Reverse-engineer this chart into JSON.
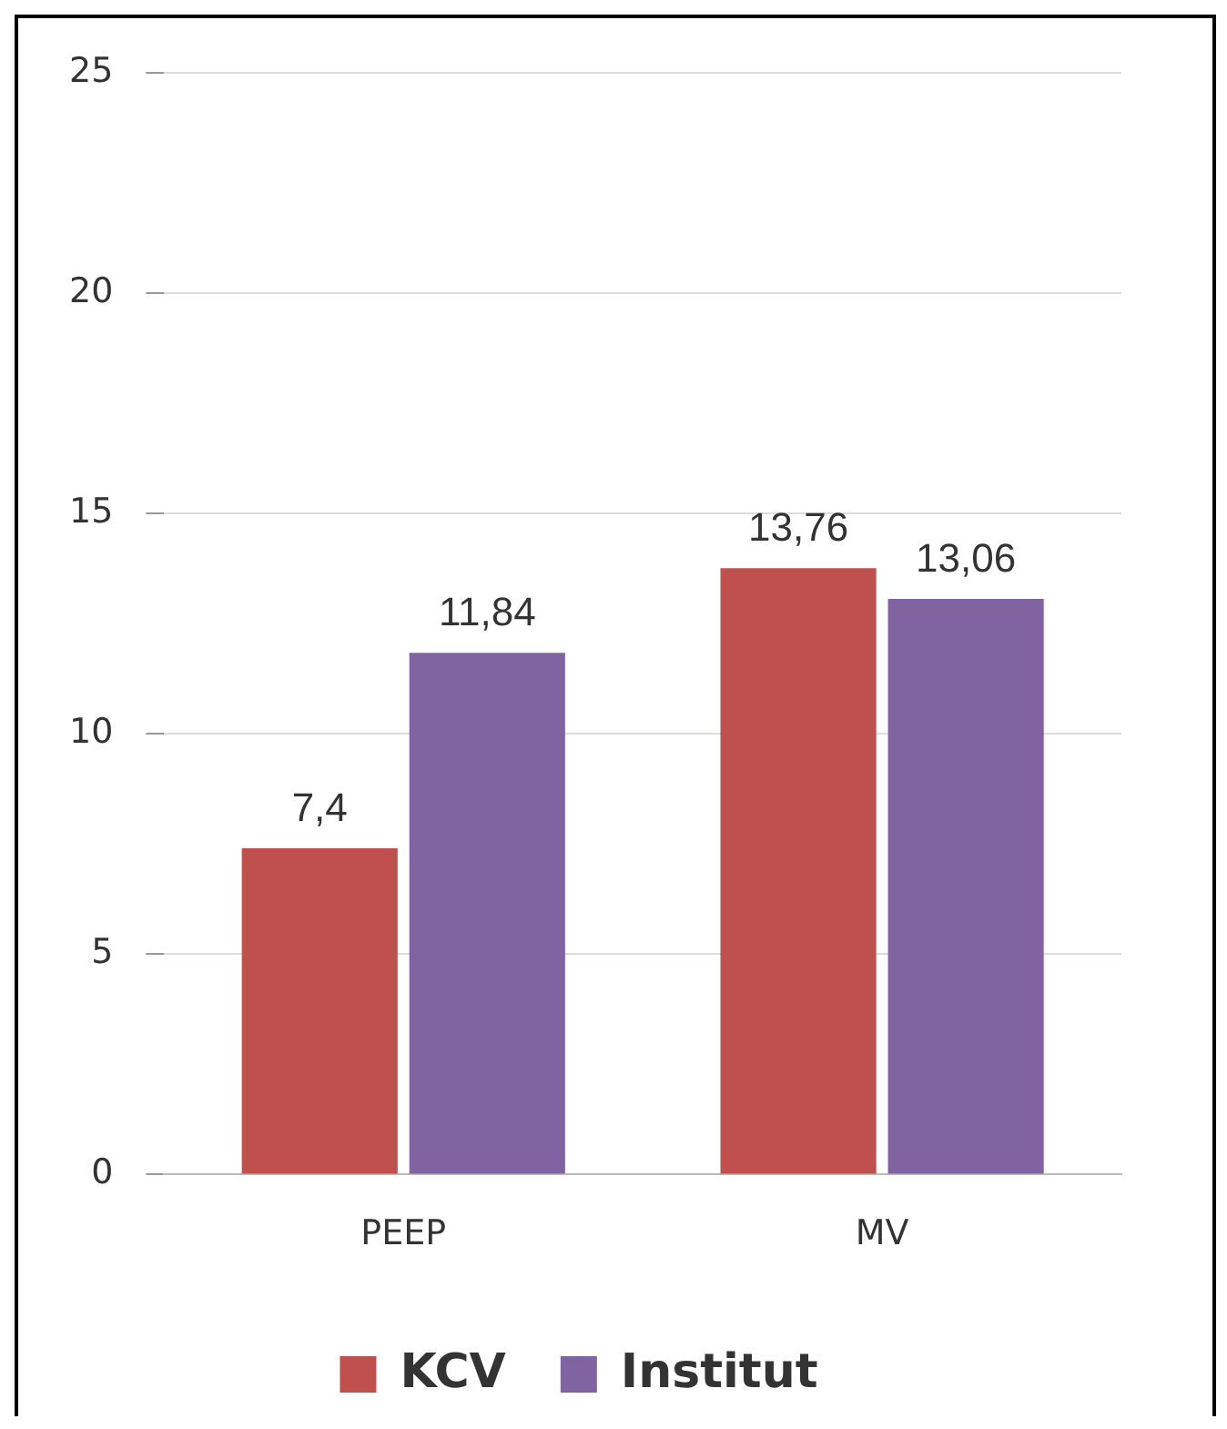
{
  "chart_data": {
    "type": "bar",
    "categories": [
      "PEEP",
      "MV"
    ],
    "series": [
      {
        "name": "KCV",
        "color": "#c0504d",
        "values": [
          7.4,
          13.76
        ],
        "value_labels": [
          "7,4",
          "13,76"
        ]
      },
      {
        "name": "Institut",
        "color": "#8064a2",
        "values": [
          11.84,
          13.06
        ],
        "value_labels": [
          "11,84",
          "13,06"
        ]
      }
    ],
    "ylim": [
      0,
      25
    ],
    "yticks": [
      0,
      5,
      10,
      15,
      20,
      25
    ],
    "grid": "y",
    "legend": "bottom"
  }
}
